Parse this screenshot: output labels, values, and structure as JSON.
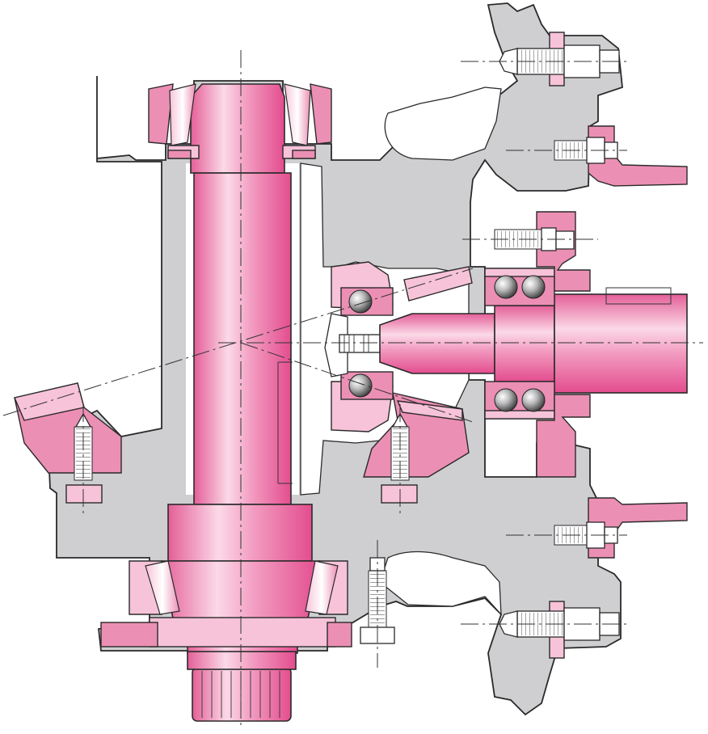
{
  "figure": {
    "title": "",
    "labels": []
  },
  "colors": {
    "housing": "#cfcfd1",
    "bearing_ring": "#ec8fb4",
    "bearing_ring_light": "#f7c3d8",
    "shaft_highlight": "#fbd9e7",
    "shaft_dark": "#e34d8f",
    "outline": "#2a2a2a",
    "background": "#ffffff"
  },
  "components": [
    "housing",
    "vertical-pinion-shaft",
    "horizontal-input-shaft",
    "tapered-roller-bearing-upper",
    "tapered-roller-bearing-lower",
    "bevel-gear",
    "angular-contact-ball-bearing-pair",
    "cap-screw",
    "splined-shaft-end"
  ]
}
